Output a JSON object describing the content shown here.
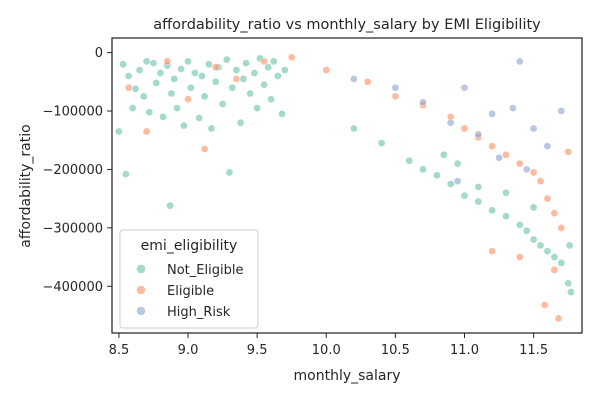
{
  "chart_data": {
    "type": "scatter",
    "title": "affordability_ratio vs monthly_salary by EMI Eligibility",
    "xlabel": "monthly_salary",
    "ylabel": "affordability_ratio",
    "xlim": [
      8.45,
      11.85
    ],
    "ylim": [
      -480000,
      25000
    ],
    "xticks": [
      8.5,
      9.0,
      9.5,
      10.0,
      10.5,
      11.0,
      11.5
    ],
    "xtick_labels": [
      "8.5",
      "9.0",
      "9.5",
      "10.0",
      "10.5",
      "11.0",
      "11.5"
    ],
    "yticks": [
      0,
      -100000,
      -200000,
      -300000,
      -400000
    ],
    "ytick_labels": [
      "0",
      "−100000",
      "−200000",
      "−300000",
      "−400000"
    ],
    "grid": false,
    "legend": {
      "title": "emi_eligibility",
      "placement": "lower-left"
    },
    "series": [
      {
        "name": "Not_Eligible",
        "color": "#66c2a5",
        "points": [
          [
            8.5,
            -135000
          ],
          [
            8.53,
            -20000
          ],
          [
            8.55,
            -208000
          ],
          [
            8.57,
            -40000
          ],
          [
            8.6,
            -95000
          ],
          [
            8.62,
            -62000
          ],
          [
            8.65,
            -30000
          ],
          [
            8.68,
            -75000
          ],
          [
            8.7,
            -15000
          ],
          [
            8.72,
            -102000
          ],
          [
            8.75,
            -18000
          ],
          [
            8.77,
            -52000
          ],
          [
            8.8,
            -35000
          ],
          [
            8.82,
            -110000
          ],
          [
            8.85,
            -22000
          ],
          [
            8.87,
            -262000
          ],
          [
            8.88,
            -70000
          ],
          [
            8.9,
            -45000
          ],
          [
            8.92,
            -95000
          ],
          [
            8.95,
            -28000
          ],
          [
            8.97,
            -125000
          ],
          [
            9.0,
            -15000
          ],
          [
            9.02,
            -60000
          ],
          [
            9.05,
            -35000
          ],
          [
            9.08,
            -112000
          ],
          [
            9.1,
            -40000
          ],
          [
            9.12,
            -75000
          ],
          [
            9.15,
            -20000
          ],
          [
            9.17,
            -130000
          ],
          [
            9.2,
            -50000
          ],
          [
            9.22,
            -25000
          ],
          [
            9.25,
            -88000
          ],
          [
            9.28,
            -12000
          ],
          [
            9.3,
            -205000
          ],
          [
            9.32,
            -60000
          ],
          [
            9.35,
            -30000
          ],
          [
            9.38,
            -120000
          ],
          [
            9.4,
            -45000
          ],
          [
            9.42,
            -18000
          ],
          [
            9.45,
            -70000
          ],
          [
            9.48,
            -35000
          ],
          [
            9.5,
            -95000
          ],
          [
            9.52,
            -10000
          ],
          [
            9.55,
            -55000
          ],
          [
            9.58,
            -25000
          ],
          [
            9.6,
            -80000
          ],
          [
            9.62,
            -15000
          ],
          [
            9.65,
            -40000
          ],
          [
            9.68,
            -105000
          ],
          [
            9.7,
            -30000
          ],
          [
            10.2,
            -130000
          ],
          [
            10.4,
            -155000
          ],
          [
            10.6,
            -185000
          ],
          [
            10.7,
            -200000
          ],
          [
            10.8,
            -210000
          ],
          [
            10.9,
            -225000
          ],
          [
            11.0,
            -245000
          ],
          [
            11.1,
            -255000
          ],
          [
            11.2,
            -270000
          ],
          [
            11.3,
            -280000
          ],
          [
            11.4,
            -295000
          ],
          [
            11.45,
            -305000
          ],
          [
            11.5,
            -320000
          ],
          [
            11.55,
            -330000
          ],
          [
            11.6,
            -340000
          ],
          [
            11.65,
            -350000
          ],
          [
            11.7,
            -360000
          ],
          [
            11.75,
            -395000
          ],
          [
            11.77,
            -410000
          ],
          [
            11.76,
            -330000
          ],
          [
            11.5,
            -265000
          ],
          [
            11.3,
            -240000
          ],
          [
            11.1,
            -230000
          ],
          [
            10.95,
            -190000
          ],
          [
            10.85,
            -175000
          ]
        ]
      },
      {
        "name": "Eligible",
        "color": "#fc8d62",
        "points": [
          [
            8.57,
            -60000
          ],
          [
            8.7,
            -135000
          ],
          [
            8.85,
            -15000
          ],
          [
            9.0,
            -80000
          ],
          [
            9.12,
            -165000
          ],
          [
            9.2,
            -25000
          ],
          [
            9.35,
            -45000
          ],
          [
            9.55,
            -15000
          ],
          [
            9.75,
            -8000
          ],
          [
            10.0,
            -30000
          ],
          [
            10.3,
            -50000
          ],
          [
            10.5,
            -75000
          ],
          [
            10.7,
            -90000
          ],
          [
            10.9,
            -110000
          ],
          [
            11.0,
            -130000
          ],
          [
            11.1,
            -145000
          ],
          [
            11.2,
            -160000
          ],
          [
            11.3,
            -175000
          ],
          [
            11.4,
            -190000
          ],
          [
            11.5,
            -205000
          ],
          [
            11.55,
            -220000
          ],
          [
            11.6,
            -250000
          ],
          [
            11.65,
            -275000
          ],
          [
            11.7,
            -300000
          ],
          [
            11.75,
            -170000
          ],
          [
            11.2,
            -340000
          ],
          [
            11.4,
            -350000
          ],
          [
            11.58,
            -432000
          ],
          [
            11.68,
            -455000
          ],
          [
            11.65,
            -372000
          ]
        ]
      },
      {
        "name": "High_Risk",
        "color": "#8da0cb",
        "points": [
          [
            10.2,
            -45000
          ],
          [
            10.5,
            -60000
          ],
          [
            10.7,
            -85000
          ],
          [
            10.9,
            -120000
          ],
          [
            11.0,
            -60000
          ],
          [
            11.1,
            -140000
          ],
          [
            11.25,
            -180000
          ],
          [
            11.35,
            -95000
          ],
          [
            11.45,
            -200000
          ],
          [
            11.5,
            -130000
          ],
          [
            11.6,
            -160000
          ],
          [
            11.7,
            -100000
          ],
          [
            11.4,
            -15000
          ],
          [
            10.95,
            -220000
          ],
          [
            11.2,
            -105000
          ]
        ]
      }
    ]
  }
}
